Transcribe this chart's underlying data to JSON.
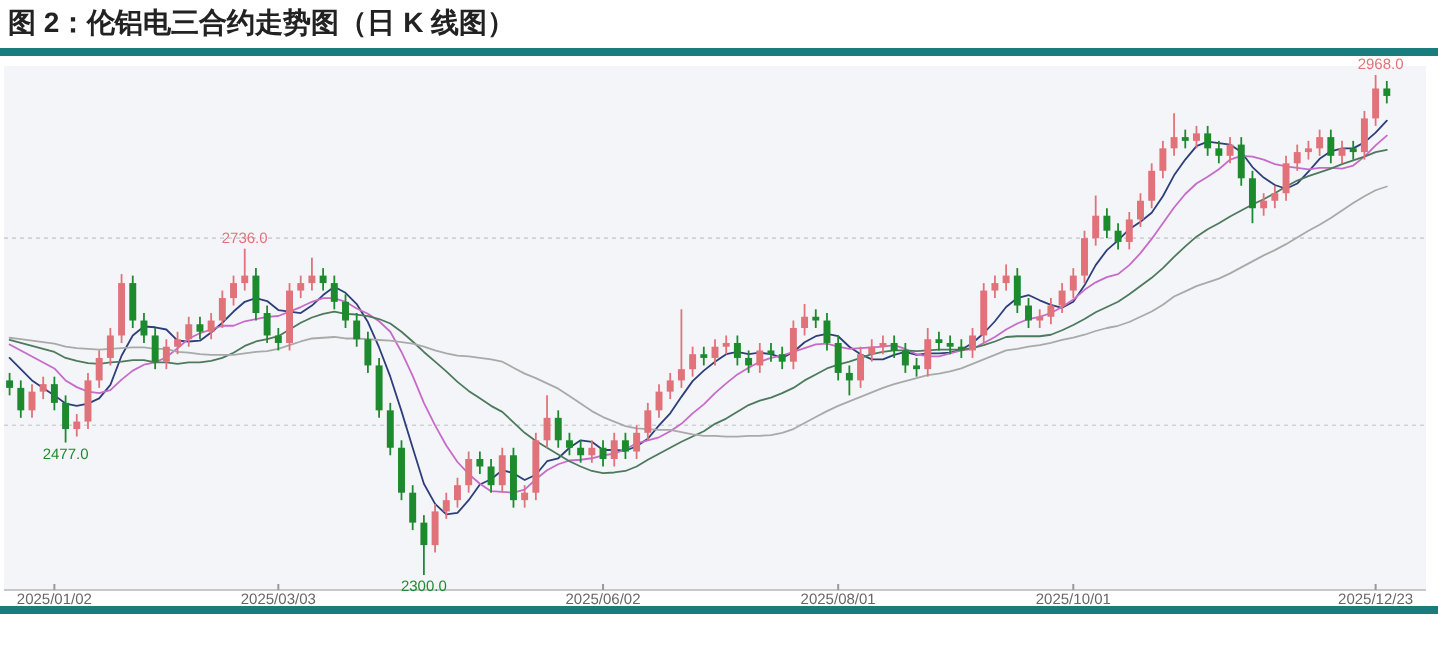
{
  "chart_data": {
    "type": "candlestick",
    "title": "图 2：伦铝电三合约走势图（日 K 线图）",
    "categories": [
      null,
      null,
      null,
      null,
      "2025/01/02",
      null,
      null,
      null,
      null,
      null,
      null,
      null,
      null,
      null,
      null,
      null,
      null,
      null,
      null,
      null,
      null,
      null,
      null,
      null,
      "2025/03/03",
      null,
      null,
      null,
      null,
      null,
      null,
      null,
      null,
      null,
      null,
      null,
      null,
      null,
      null,
      null,
      null,
      null,
      null,
      null,
      null,
      null,
      null,
      null,
      null,
      null,
      null,
      null,
      null,
      "2025/06/02",
      null,
      null,
      null,
      null,
      null,
      null,
      null,
      null,
      null,
      null,
      null,
      null,
      null,
      null,
      null,
      null,
      null,
      null,
      null,
      null,
      "2025/08/01",
      null,
      null,
      null,
      null,
      null,
      null,
      null,
      null,
      null,
      null,
      null,
      null,
      null,
      null,
      null,
      null,
      null,
      null,
      null,
      null,
      "2025/10/01",
      null,
      null,
      null,
      null,
      null,
      null,
      null,
      null,
      null,
      null,
      null,
      null,
      null,
      null,
      null,
      null,
      null,
      null,
      null,
      null,
      null,
      null,
      null,
      null,
      null,
      null,
      "2025/12/23",
      null
    ],
    "ohlc": [
      [
        2560,
        2570,
        2540,
        2550
      ],
      [
        2550,
        2560,
        2510,
        2520
      ],
      [
        2520,
        2555,
        2510,
        2545
      ],
      [
        2545,
        2565,
        2535,
        2555
      ],
      [
        2555,
        2565,
        2520,
        2530
      ],
      [
        2530,
        2540,
        2477,
        2495
      ],
      [
        2495,
        2515,
        2485,
        2505
      ],
      [
        2505,
        2570,
        2495,
        2560
      ],
      [
        2560,
        2600,
        2550,
        2590
      ],
      [
        2590,
        2630,
        2580,
        2620
      ],
      [
        2620,
        2702,
        2610,
        2690
      ],
      [
        2690,
        2700,
        2630,
        2640
      ],
      [
        2640,
        2650,
        2610,
        2620
      ],
      [
        2620,
        2630,
        2575,
        2585
      ],
      [
        2585,
        2615,
        2575,
        2605
      ],
      [
        2605,
        2625,
        2595,
        2615
      ],
      [
        2615,
        2645,
        2605,
        2635
      ],
      [
        2635,
        2645,
        2615,
        2625
      ],
      [
        2625,
        2650,
        2615,
        2640
      ],
      [
        2640,
        2680,
        2630,
        2670
      ],
      [
        2670,
        2700,
        2660,
        2690
      ],
      [
        2690,
        2736,
        2680,
        2700
      ],
      [
        2700,
        2710,
        2640,
        2650
      ],
      [
        2650,
        2660,
        2610,
        2620
      ],
      [
        2620,
        2630,
        2600,
        2610
      ],
      [
        2610,
        2690,
        2600,
        2680
      ],
      [
        2680,
        2700,
        2670,
        2690
      ],
      [
        2690,
        2724,
        2680,
        2700
      ],
      [
        2700,
        2710,
        2680,
        2690
      ],
      [
        2690,
        2700,
        2655,
        2665
      ],
      [
        2665,
        2675,
        2630,
        2640
      ],
      [
        2640,
        2650,
        2605,
        2615
      ],
      [
        2615,
        2625,
        2570,
        2580
      ],
      [
        2580,
        2590,
        2510,
        2520
      ],
      [
        2520,
        2530,
        2460,
        2470
      ],
      [
        2470,
        2480,
        2400,
        2410
      ],
      [
        2410,
        2420,
        2360,
        2370
      ],
      [
        2370,
        2380,
        2300,
        2340
      ],
      [
        2340,
        2395,
        2330,
        2385
      ],
      [
        2385,
        2410,
        2375,
        2400
      ],
      [
        2400,
        2430,
        2390,
        2420
      ],
      [
        2420,
        2465,
        2410,
        2455
      ],
      [
        2455,
        2465,
        2435,
        2445
      ],
      [
        2445,
        2455,
        2410,
        2420
      ],
      [
        2420,
        2470,
        2410,
        2460
      ],
      [
        2460,
        2470,
        2390,
        2400
      ],
      [
        2400,
        2420,
        2390,
        2410
      ],
      [
        2410,
        2490,
        2400,
        2480
      ],
      [
        2480,
        2540,
        2470,
        2510
      ],
      [
        2510,
        2520,
        2470,
        2480
      ],
      [
        2480,
        2490,
        2460,
        2470
      ],
      [
        2470,
        2480,
        2450,
        2460
      ],
      [
        2460,
        2480,
        2450,
        2470
      ],
      [
        2470,
        2480,
        2445,
        2455
      ],
      [
        2455,
        2490,
        2445,
        2480
      ],
      [
        2480,
        2490,
        2455,
        2465
      ],
      [
        2465,
        2500,
        2455,
        2490
      ],
      [
        2490,
        2530,
        2480,
        2520
      ],
      [
        2520,
        2555,
        2510,
        2545
      ],
      [
        2545,
        2570,
        2535,
        2560
      ],
      [
        2560,
        2655,
        2550,
        2575
      ],
      [
        2575,
        2605,
        2565,
        2595
      ],
      [
        2595,
        2605,
        2580,
        2590
      ],
      [
        2590,
        2615,
        2580,
        2605
      ],
      [
        2605,
        2620,
        2595,
        2610
      ],
      [
        2610,
        2620,
        2580,
        2590
      ],
      [
        2590,
        2600,
        2570,
        2580
      ],
      [
        2580,
        2610,
        2570,
        2600
      ],
      [
        2600,
        2610,
        2585,
        2595
      ],
      [
        2595,
        2605,
        2575,
        2585
      ],
      [
        2585,
        2640,
        2575,
        2630
      ],
      [
        2630,
        2662,
        2620,
        2645
      ],
      [
        2645,
        2655,
        2630,
        2640
      ],
      [
        2640,
        2650,
        2600,
        2610
      ],
      [
        2610,
        2620,
        2560,
        2570
      ],
      [
        2570,
        2580,
        2540,
        2560
      ],
      [
        2560,
        2605,
        2550,
        2595
      ],
      [
        2595,
        2615,
        2585,
        2605
      ],
      [
        2605,
        2620,
        2595,
        2610
      ],
      [
        2610,
        2620,
        2590,
        2600
      ],
      [
        2600,
        2610,
        2570,
        2580
      ],
      [
        2580,
        2590,
        2565,
        2575
      ],
      [
        2575,
        2630,
        2565,
        2615
      ],
      [
        2615,
        2625,
        2600,
        2610
      ],
      [
        2610,
        2620,
        2595,
        2605
      ],
      [
        2605,
        2615,
        2590,
        2600
      ],
      [
        2600,
        2630,
        2590,
        2620
      ],
      [
        2620,
        2690,
        2610,
        2680
      ],
      [
        2680,
        2700,
        2670,
        2690
      ],
      [
        2690,
        2715,
        2680,
        2700
      ],
      [
        2700,
        2710,
        2650,
        2660
      ],
      [
        2660,
        2670,
        2630,
        2640
      ],
      [
        2640,
        2655,
        2630,
        2645
      ],
      [
        2645,
        2670,
        2635,
        2660
      ],
      [
        2660,
        2690,
        2650,
        2680
      ],
      [
        2680,
        2710,
        2670,
        2700
      ],
      [
        2700,
        2760,
        2690,
        2750
      ],
      [
        2750,
        2807,
        2740,
        2780
      ],
      [
        2780,
        2790,
        2750,
        2760
      ],
      [
        2760,
        2770,
        2735,
        2745
      ],
      [
        2745,
        2785,
        2735,
        2775
      ],
      [
        2775,
        2810,
        2765,
        2800
      ],
      [
        2800,
        2850,
        2790,
        2840
      ],
      [
        2840,
        2880,
        2830,
        2870
      ],
      [
        2870,
        2917,
        2860,
        2885
      ],
      [
        2885,
        2895,
        2870,
        2880
      ],
      [
        2880,
        2900,
        2870,
        2890
      ],
      [
        2890,
        2900,
        2860,
        2870
      ],
      [
        2870,
        2880,
        2850,
        2860
      ],
      [
        2860,
        2885,
        2850,
        2875
      ],
      [
        2875,
        2885,
        2820,
        2830
      ],
      [
        2830,
        2840,
        2770,
        2790
      ],
      [
        2790,
        2810,
        2780,
        2800
      ],
      [
        2800,
        2820,
        2790,
        2810
      ],
      [
        2810,
        2860,
        2800,
        2850
      ],
      [
        2850,
        2875,
        2840,
        2865
      ],
      [
        2865,
        2880,
        2855,
        2870
      ],
      [
        2870,
        2895,
        2860,
        2885
      ],
      [
        2885,
        2895,
        2850,
        2860
      ],
      [
        2860,
        2880,
        2850,
        2870
      ],
      [
        2870,
        2880,
        2855,
        2865
      ],
      [
        2865,
        2920,
        2855,
        2910
      ],
      [
        2910,
        2968,
        2900,
        2950
      ],
      [
        2950,
        2960,
        2930,
        2940
      ]
    ],
    "colors": [
      "#1e8a2e",
      "#1e8a2e",
      "#e0737a",
      "#e0737a",
      "#1e8a2e",
      "#1e8a2e",
      "#e0737a",
      "#e0737a",
      "#e0737a",
      "#e0737a",
      "#e0737a",
      "#1e8a2e",
      "#1e8a2e",
      "#1e8a2e",
      "#e0737a",
      "#e0737a",
      "#e0737a",
      "#1e8a2e",
      "#e0737a",
      "#e0737a",
      "#e0737a",
      "#e0737a",
      "#1e8a2e",
      "#1e8a2e",
      "#1e8a2e",
      "#e0737a",
      "#e0737a",
      "#e0737a",
      "#1e8a2e",
      "#1e8a2e",
      "#1e8a2e",
      "#1e8a2e",
      "#1e8a2e",
      "#1e8a2e",
      "#1e8a2e",
      "#1e8a2e",
      "#1e8a2e",
      "#1e8a2e",
      "#e0737a",
      "#e0737a",
      "#e0737a",
      "#e0737a",
      "#1e8a2e",
      "#1e8a2e",
      "#e0737a",
      "#1e8a2e",
      "#e0737a",
      "#e0737a",
      "#e0737a",
      "#1e8a2e",
      "#1e8a2e",
      "#1e8a2e",
      "#e0737a",
      "#1e8a2e",
      "#e0737a",
      "#1e8a2e",
      "#e0737a",
      "#e0737a",
      "#e0737a",
      "#e0737a",
      "#e0737a",
      "#e0737a",
      "#1e8a2e",
      "#e0737a",
      "#e0737a",
      "#1e8a2e",
      "#1e8a2e",
      "#e0737a",
      "#1e8a2e",
      "#1e8a2e",
      "#e0737a",
      "#e0737a",
      "#1e8a2e",
      "#1e8a2e",
      "#1e8a2e",
      "#1e8a2e",
      "#e0737a",
      "#e0737a",
      "#e0737a",
      "#1e8a2e",
      "#1e8a2e",
      "#1e8a2e",
      "#e0737a",
      "#1e8a2e",
      "#1e8a2e",
      "#1e8a2e",
      "#e0737a",
      "#e0737a",
      "#e0737a",
      "#e0737a",
      "#1e8a2e",
      "#1e8a2e",
      "#e0737a",
      "#e0737a",
      "#e0737a",
      "#e0737a",
      "#e0737a",
      "#e0737a",
      "#1e8a2e",
      "#1e8a2e",
      "#e0737a",
      "#e0737a",
      "#e0737a",
      "#e0737a",
      "#e0737a",
      "#1e8a2e",
      "#e0737a",
      "#1e8a2e",
      "#1e8a2e",
      "#e0737a",
      "#1e8a2e",
      "#1e8a2e",
      "#e0737a",
      "#e0737a",
      "#e0737a",
      "#e0737a",
      "#e0737a",
      "#e0737a",
      "#1e8a2e",
      "#e0737a",
      "#1e8a2e",
      "#e0737a",
      "#e0737a",
      "#1e8a2e"
    ],
    "series": [
      {
        "type": "line",
        "color": "#2d3f7a",
        "values": [
          2590,
          2575,
          2560,
          2550,
          2540,
          2529,
          2526,
          2529,
          2536,
          2554,
          2593,
          2620,
          2632,
          2631,
          2628,
          2613,
          2612,
          2613,
          2624,
          2637,
          2652,
          2665,
          2670,
          2666,
          2654,
          2652,
          2650,
          2660,
          2674,
          2685,
          2677,
          2662,
          2638,
          2604,
          2565,
          2519,
          2470,
          2422,
          2395,
          2381,
          2383,
          2400,
          2421,
          2428,
          2440,
          2436,
          2427,
          2434,
          2452,
          2456,
          2470,
          2480,
          2478,
          2467,
          2467,
          2466,
          2472,
          2482,
          2500,
          2516,
          2538,
          2559,
          2573,
          2585,
          2595,
          2598,
          2595,
          2597,
          2595,
          2590,
          2598,
          2611,
          2619,
          2622,
          2619,
          2605,
          2595,
          2588,
          2588,
          2594,
          2598,
          2594,
          2596,
          2596,
          2597,
          2601,
          2610,
          2623,
          2639,
          2658,
          2670,
          2674,
          2667,
          2661,
          2657,
          2665,
          2687,
          2714,
          2734,
          2747,
          2762,
          2772,
          2784,
          2806,
          2834,
          2855,
          2873,
          2879,
          2877,
          2875,
          2865,
          2845,
          2831,
          2821,
          2816,
          2823,
          2839,
          2856,
          2866,
          2870,
          2870,
          2878,
          2891,
          2907
        ]
      },
      {
        "type": "line",
        "color": "#c76bc9",
        "values": [
          2608,
          2600,
          2592,
          2584,
          2576,
          2560,
          2551,
          2545,
          2543,
          2547,
          2561,
          2573,
          2581,
          2584,
          2591,
          2603,
          2616,
          2623,
          2628,
          2633,
          2633,
          2639,
          2642,
          2645,
          2646,
          2652,
          2658,
          2665,
          2670,
          2670,
          2665,
          2656,
          2649,
          2639,
          2625,
          2598,
          2566,
          2530,
          2500,
          2473,
          2451,
          2435,
          2422,
          2412,
          2411,
          2410,
          2414,
          2428,
          2440,
          2448,
          2453,
          2454,
          2456,
          2460,
          2462,
          2468,
          2476,
          2480,
          2484,
          2492,
          2502,
          2516,
          2528,
          2543,
          2556,
          2568,
          2577,
          2585,
          2590,
          2593,
          2598,
          2603,
          2608,
          2609,
          2605,
          2602,
          2603,
          2604,
          2605,
          2607,
          2602,
          2595,
          2592,
          2592,
          2596,
          2600,
          2602,
          2610,
          2618,
          2628,
          2636,
          2642,
          2645,
          2650,
          2658,
          2668,
          2681,
          2691,
          2698,
          2702,
          2714,
          2730,
          2749,
          2770,
          2791,
          2809,
          2823,
          2832,
          2842,
          2855,
          2860,
          2859,
          2855,
          2849,
          2846,
          2844,
          2842,
          2844,
          2844,
          2843,
          2847,
          2859,
          2874,
          2887
        ]
      },
      {
        "type": "line",
        "color": "#4d7a5c",
        "values": [
          2614,
          2610,
          2606,
          2602,
          2598,
          2590,
          2586,
          2583,
          2582,
          2584,
          2585,
          2587,
          2587,
          2584,
          2584,
          2582,
          2584,
          2584,
          2586,
          2590,
          2597,
          2606,
          2612,
          2615,
          2619,
          2628,
          2637,
          2644,
          2649,
          2652,
          2649,
          2648,
          2646,
          2642,
          2636,
          2625,
          2612,
          2598,
          2585,
          2572,
          2558,
          2546,
          2536,
          2526,
          2518,
          2504,
          2490,
          2479,
          2470,
          2461,
          2452,
          2445,
          2439,
          2436,
          2437,
          2439,
          2445,
          2454,
          2462,
          2470,
          2478,
          2485,
          2492,
          2502,
          2509,
          2518,
          2527,
          2533,
          2537,
          2543,
          2550,
          2560,
          2568,
          2576,
          2581,
          2585,
          2590,
          2595,
          2598,
          2600,
          2600,
          2599,
          2600,
          2601,
          2601,
          2601,
          2603,
          2607,
          2612,
          2618,
          2619,
          2619,
          2619,
          2621,
          2627,
          2634,
          2642,
          2651,
          2658,
          2665,
          2675,
          2686,
          2697,
          2710,
          2725,
          2739,
          2752,
          2762,
          2770,
          2779,
          2787,
          2795,
          2802,
          2810,
          2819,
          2827,
          2833,
          2838,
          2843,
          2849,
          2854,
          2859,
          2865,
          2868
        ]
      },
      {
        "type": "line",
        "color": "#a9a9a9",
        "values": [
          2617,
          2615,
          2613,
          2611,
          2609,
          2605,
          2603,
          2602,
          2601,
          2602,
          2603,
          2604,
          2604,
          2602,
          2602,
          2598,
          2597,
          2595,
          2594,
          2594,
          2594,
          2596,
          2598,
          2599,
          2602,
          2607,
          2612,
          2616,
          2617,
          2618,
          2616,
          2616,
          2615,
          2614,
          2613,
          2611,
          2609,
          2605,
          2600,
          2596,
          2593,
          2592,
          2590,
          2588,
          2585,
          2577,
          2569,
          2563,
          2556,
          2549,
          2539,
          2529,
          2519,
          2511,
          2505,
          2499,
          2496,
          2495,
          2494,
          2494,
          2491,
          2488,
          2486,
          2486,
          2485,
          2485,
          2486,
          2486,
          2487,
          2490,
          2495,
          2503,
          2511,
          2519,
          2526,
          2532,
          2538,
          2544,
          2550,
          2555,
          2559,
          2563,
          2567,
          2569,
          2572,
          2576,
          2582,
          2588,
          2594,
          2600,
          2602,
          2605,
          2607,
          2610,
          2614,
          2617,
          2621,
          2626,
          2630,
          2633,
          2638,
          2645,
          2652,
          2661,
          2672,
          2679,
          2686,
          2691,
          2696,
          2703,
          2711,
          2719,
          2727,
          2734,
          2742,
          2751,
          2760,
          2768,
          2777,
          2787,
          2797,
          2806,
          2814,
          2819
        ]
      }
    ],
    "annotations": [
      {
        "text": "2736.0",
        "y": 2736
      },
      {
        "text": "2477.0",
        "y": 2477
      },
      {
        "text": "2300.0",
        "y": 2300
      },
      {
        "text": "2968.0",
        "y": 2968
      }
    ],
    "ylim": [
      2280,
      2980
    ],
    "yticks": [
      {
        "value": 2500,
        "label": null
      },
      {
        "value": 2750,
        "label": null
      }
    ],
    "grid": "y",
    "tick_labels": "x",
    "line_style": "solid"
  }
}
